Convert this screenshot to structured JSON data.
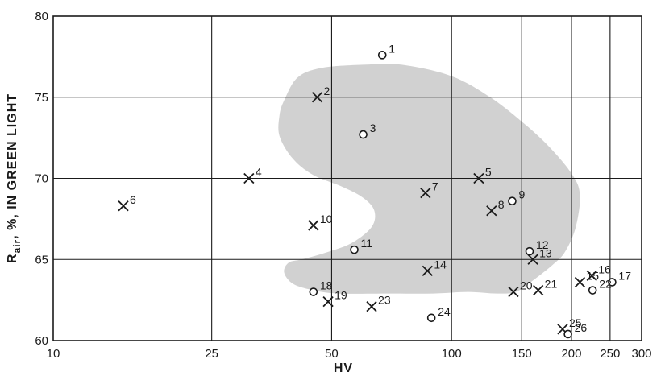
{
  "chart_data": {
    "type": "scatter",
    "xlabel": "HV",
    "ylabel": "R_air, %, IN GREEN LIGHT",
    "ylabel_main": "R",
    "ylabel_sub": "air",
    "ylabel_rest": ", %, IN GREEN LIGHT",
    "x_scale": "log",
    "xlim": [
      10,
      300
    ],
    "ylim": [
      60,
      80
    ],
    "x_ticks": [
      10,
      25,
      50,
      100,
      150,
      200,
      250,
      300
    ],
    "x_tick_labels": [
      "10",
      "25",
      "50",
      "100",
      "150",
      "200",
      "250",
      "300"
    ],
    "x_gridlines": [
      25,
      50,
      100,
      150,
      200,
      250
    ],
    "y_ticks": [
      60,
      65,
      70,
      75,
      80
    ],
    "y_tick_labels": [
      "60",
      "65",
      "70",
      "75",
      "80"
    ],
    "grid": true,
    "series": [
      {
        "marker": "cross",
        "points": [
          {
            "label": "2",
            "x": 46,
            "y": 75.0
          },
          {
            "label": "4",
            "x": 31,
            "y": 70.0
          },
          {
            "label": "5",
            "x": 117,
            "y": 70.0
          },
          {
            "label": "6",
            "x": 15,
            "y": 68.3
          },
          {
            "label": "7",
            "x": 86,
            "y": 69.1
          },
          {
            "label": "8",
            "x": 126,
            "y": 68.0
          },
          {
            "label": "10",
            "x": 45,
            "y": 67.1
          },
          {
            "label": "13",
            "x": 160,
            "y": 65.0
          },
          {
            "label": "14",
            "x": 87,
            "y": 64.3
          },
          {
            "label": "15",
            "x": 210,
            "y": 63.6
          },
          {
            "label": "16",
            "x": 225,
            "y": 64.0
          },
          {
            "label": "19",
            "x": 49,
            "y": 62.4
          },
          {
            "label": "20",
            "x": 143,
            "y": 63.0
          },
          {
            "label": "21",
            "x": 165,
            "y": 63.1
          },
          {
            "label": "23",
            "x": 63,
            "y": 62.1
          },
          {
            "label": "25",
            "x": 190,
            "y": 60.7
          }
        ]
      },
      {
        "marker": "circle",
        "points": [
          {
            "label": "1",
            "x": 67,
            "y": 77.6
          },
          {
            "label": "3",
            "x": 60,
            "y": 72.7
          },
          {
            "label": "9",
            "x": 142,
            "y": 68.6
          },
          {
            "label": "11",
            "x": 57,
            "y": 65.6
          },
          {
            "label": "12",
            "x": 157,
            "y": 65.5
          },
          {
            "label": "17",
            "x": 253,
            "y": 63.6
          },
          {
            "label": "18",
            "x": 45,
            "y": 63.0
          },
          {
            "label": "22",
            "x": 226,
            "y": 63.1
          },
          {
            "label": "24",
            "x": 89,
            "y": 61.4
          },
          {
            "label": "26",
            "x": 196,
            "y": 60.4
          }
        ]
      }
    ],
    "shaded_region": {
      "color": "#c9c9c9",
      "boundary": [
        [
          38,
          74.8
        ],
        [
          41,
          76.2
        ],
        [
          47,
          76.8
        ],
        [
          60,
          77.0
        ],
        [
          75,
          77.0
        ],
        [
          100,
          76.3
        ],
        [
          125,
          75.0
        ],
        [
          150,
          73.5
        ],
        [
          175,
          72.0
        ],
        [
          200,
          70.3
        ],
        [
          210,
          69.0
        ],
        [
          205,
          67.0
        ],
        [
          193,
          65.5
        ],
        [
          180,
          64.7
        ],
        [
          160,
          63.7
        ],
        [
          145,
          63.0
        ],
        [
          130,
          62.9
        ],
        [
          110,
          63.0
        ],
        [
          90,
          62.9
        ],
        [
          70,
          62.9
        ],
        [
          52,
          62.9
        ],
        [
          45,
          63.1
        ],
        [
          40,
          63.5
        ],
        [
          38,
          64.2
        ],
        [
          39,
          64.8
        ],
        [
          42,
          65.0
        ],
        [
          48,
          65.4
        ],
        [
          56,
          66.0
        ],
        [
          63,
          67.0
        ],
        [
          64,
          68.0
        ],
        [
          60,
          68.8
        ],
        [
          53,
          69.5
        ],
        [
          45,
          70.2
        ],
        [
          40,
          71.2
        ],
        [
          37,
          72.6
        ],
        [
          37,
          73.9
        ]
      ]
    },
    "shading_color": "#c9c9c9",
    "ink_color": "#1a1a1a"
  }
}
